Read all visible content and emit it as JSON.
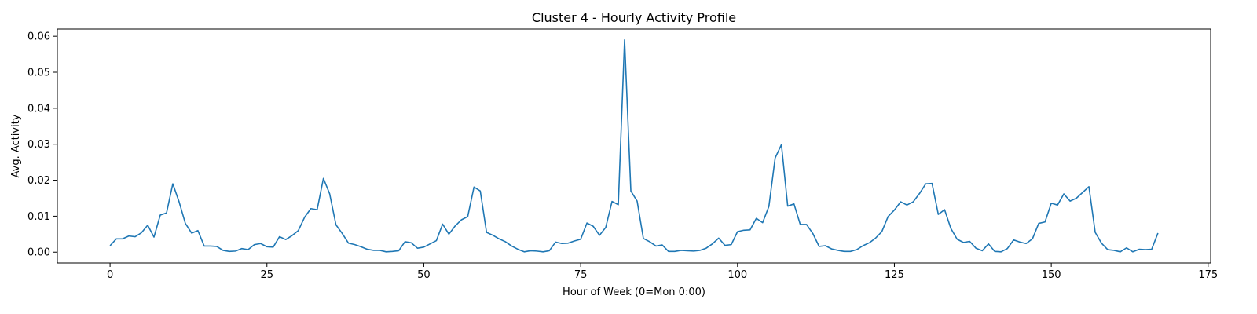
{
  "chart_data": {
    "type": "line",
    "title": "Cluster 4 - Hourly Activity Profile",
    "xlabel": "Hour of Week (0=Mon 0:00)",
    "ylabel": "Avg. Activity",
    "xlim": [
      -8.4,
      175.4
    ],
    "ylim": [
      -0.003,
      0.062
    ],
    "xticks": [
      0,
      25,
      50,
      75,
      100,
      125,
      150,
      175
    ],
    "xtick_labels": [
      "0",
      "25",
      "50",
      "75",
      "100",
      "125",
      "150",
      "175"
    ],
    "yticks": [
      0,
      0.01,
      0.02,
      0.03,
      0.04,
      0.05,
      0.06
    ],
    "ytick_labels": [
      "0.00",
      "0.01",
      "0.02",
      "0.03",
      "0.04",
      "0.05",
      "0.06"
    ],
    "grid": false,
    "series": [
      {
        "color": "#1f77b4",
        "x": [
          0,
          1,
          2,
          3,
          4,
          5,
          6,
          7,
          8,
          9,
          10,
          11,
          12,
          13,
          14,
          15,
          16,
          17,
          18,
          19,
          20,
          21,
          22,
          23,
          24,
          25,
          26,
          27,
          28,
          29,
          30,
          31,
          32,
          33,
          34,
          35,
          36,
          37,
          38,
          39,
          40,
          41,
          42,
          43,
          44,
          45,
          46,
          47,
          48,
          49,
          50,
          51,
          52,
          53,
          54,
          55,
          56,
          57,
          58,
          59,
          60,
          61,
          62,
          63,
          64,
          65,
          66,
          67,
          68,
          69,
          70,
          71,
          72,
          73,
          74,
          75,
          76,
          77,
          78,
          79,
          80,
          81,
          82,
          83,
          84,
          85,
          86,
          87,
          88,
          89,
          90,
          91,
          92,
          93,
          94,
          95,
          96,
          97,
          98,
          99,
          100,
          101,
          102,
          103,
          104,
          105,
          106,
          107,
          108,
          109,
          110,
          111,
          112,
          113,
          114,
          115,
          116,
          117,
          118,
          119,
          120,
          121,
          122,
          123,
          124,
          125,
          126,
          127,
          128,
          129,
          130,
          131,
          132,
          133,
          134,
          135,
          136,
          137,
          138,
          139,
          140,
          141,
          142,
          143,
          144,
          145,
          146,
          147,
          148,
          149,
          150,
          151,
          152,
          153,
          154,
          155,
          156,
          157,
          158,
          159,
          160,
          161,
          162,
          163,
          164,
          165,
          166,
          167
        ],
        "y": [
          0.0018,
          0.0037,
          0.0037,
          0.0045,
          0.0043,
          0.0054,
          0.0075,
          0.0042,
          0.0103,
          0.0109,
          0.019,
          0.014,
          0.008,
          0.0053,
          0.006,
          0.0017,
          0.0017,
          0.0016,
          0.0005,
          0.0002,
          0.0003,
          0.001,
          0.0007,
          0.0021,
          0.0024,
          0.0015,
          0.0014,
          0.0043,
          0.0035,
          0.0046,
          0.006,
          0.0097,
          0.0121,
          0.0118,
          0.0205,
          0.0162,
          0.0076,
          0.0052,
          0.0025,
          0.0021,
          0.0015,
          0.0008,
          0.0005,
          0.0005,
          0.0001,
          0.0002,
          0.0004,
          0.0029,
          0.0026,
          0.0011,
          0.0014,
          0.0023,
          0.0032,
          0.0078,
          0.005,
          0.0073,
          0.009,
          0.0099,
          0.0181,
          0.017,
          0.0055,
          0.0047,
          0.0037,
          0.0029,
          0.0017,
          0.0008,
          0.0001,
          0.0004,
          0.0003,
          0.0001,
          0.0004,
          0.0028,
          0.0024,
          0.0025,
          0.0031,
          0.0036,
          0.0081,
          0.0072,
          0.0047,
          0.0069,
          0.0141,
          0.0132,
          0.059,
          0.017,
          0.0142,
          0.0038,
          0.0029,
          0.0017,
          0.002,
          0.0002,
          0.0002,
          0.0005,
          0.0004,
          0.0003,
          0.0005,
          0.0011,
          0.0023,
          0.0039,
          0.0019,
          0.0021,
          0.0057,
          0.0061,
          0.0062,
          0.0094,
          0.0082,
          0.0127,
          0.0262,
          0.0299,
          0.0128,
          0.0134,
          0.0077,
          0.0077,
          0.0052,
          0.0016,
          0.0018,
          0.0009,
          0.0005,
          0.0002,
          0.0002,
          0.0007,
          0.0018,
          0.0026,
          0.0039,
          0.0057,
          0.0099,
          0.0117,
          0.014,
          0.0131,
          0.014,
          0.0163,
          0.019,
          0.0191,
          0.0105,
          0.0118,
          0.0066,
          0.0036,
          0.0027,
          0.003,
          0.0011,
          0.0004,
          0.0023,
          0.0002,
          0.0001,
          0.001,
          0.0034,
          0.0028,
          0.0024,
          0.0037,
          0.008,
          0.0084,
          0.0136,
          0.0131,
          0.0162,
          0.0142,
          0.015,
          0.0166,
          0.0182,
          0.0055,
          0.0025,
          0.0007,
          0.0005,
          0.0001,
          0.0012,
          0.0001,
          0.0008,
          0.0007,
          0.0008,
          0.0053
        ]
      }
    ]
  }
}
